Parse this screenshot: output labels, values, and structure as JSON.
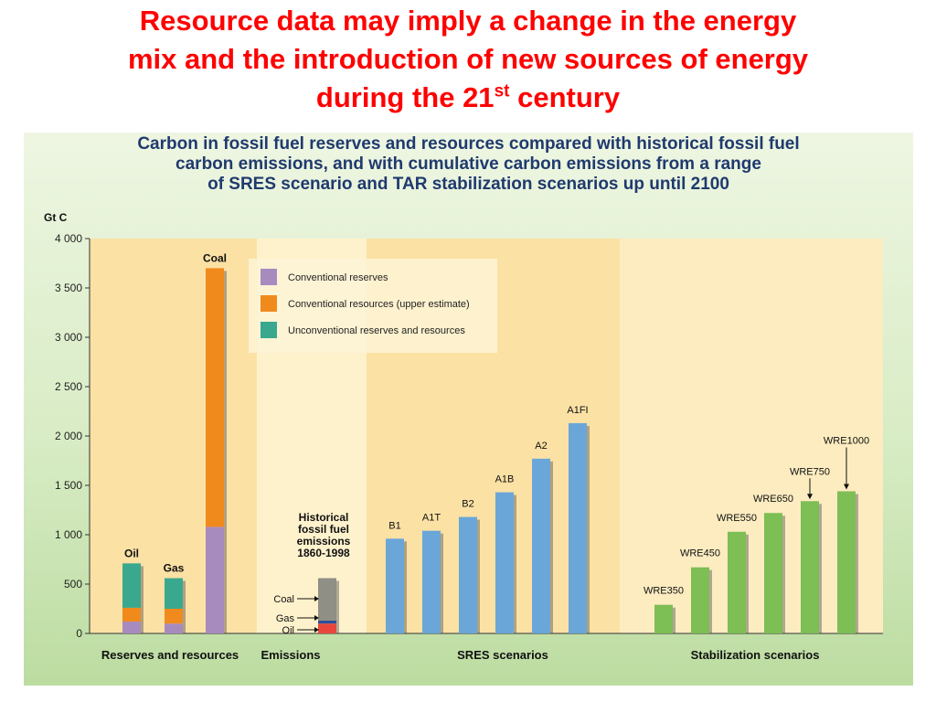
{
  "slide": {
    "title_line1": "Resource data may imply a change in the energy",
    "title_line2": "mix and the introduction of new sources of energy",
    "title_line3_pre": "during the 21",
    "title_line3_sup": "st",
    "title_line3_post": " century"
  },
  "chart_data": {
    "type": "bar",
    "title": "Carbon in fossil fuel reserves and resources compared with historical fossil fuel carbon emissions, and with cumulative carbon emissions from a range of SRES scenario and TAR stabilization scenarios up until 2100",
    "title_lines": [
      "Carbon in fossil fuel reserves and resources compared with historical fossil fuel",
      "carbon emissions, and with cumulative carbon emissions from a range",
      "of SRES scenario and TAR stabilization scenarios up until 2100"
    ],
    "ylabel": "Gt C",
    "ylim": [
      0,
      4000
    ],
    "yticks": [
      0,
      500,
      1000,
      1500,
      2000,
      2500,
      3000,
      3500,
      4000
    ],
    "ytick_labels": [
      "0",
      "500",
      "1 000",
      "1 500",
      "2 000",
      "2 500",
      "3 000",
      "3 500",
      "4 000"
    ],
    "grid": false,
    "legend_position": "top-center",
    "legend": [
      {
        "name": "Conventional reserves",
        "color": "#a78bbf"
      },
      {
        "name": "Conventional resources (upper estimate)",
        "color": "#f08a1c"
      },
      {
        "name": "Unconventional reserves and resources",
        "color": "#3aa88e"
      }
    ],
    "groups": [
      {
        "name": "Reserves and resources",
        "bars": [
          {
            "label": "Oil",
            "stack": [
              {
                "series": "Conventional reserves",
                "value": 120
              },
              {
                "series": "Conventional resources (upper estimate)",
                "value": 140
              },
              {
                "series": "Unconventional reserves and resources",
                "value": 450
              }
            ]
          },
          {
            "label": "Gas",
            "stack": [
              {
                "series": "Conventional reserves",
                "value": 100
              },
              {
                "series": "Conventional resources (upper estimate)",
                "value": 150
              },
              {
                "series": "Unconventional reserves and resources",
                "value": 310
              }
            ]
          },
          {
            "label": "Coal",
            "stack": [
              {
                "series": "Conventional reserves",
                "value": 1080
              },
              {
                "series": "Conventional resources (upper estimate)",
                "value": 2620
              }
            ]
          }
        ]
      },
      {
        "name": "Emissions",
        "label": "Historical fossil fuel emissions 1860-1998",
        "label_lines": [
          "Historical",
          "fossil fuel",
          "emissions",
          "1860-1998"
        ],
        "bars": [
          {
            "label": "",
            "stack": [
              {
                "series": "Oil",
                "value": 100,
                "color": "#e8463c"
              },
              {
                "series": "Gas",
                "value": 30,
                "color": "#2c4f9a"
              },
              {
                "series": "Coal",
                "value": 430,
                "color": "#8f8f86"
              }
            ]
          }
        ],
        "pointers": [
          "Coal",
          "Gas",
          "Oil"
        ]
      },
      {
        "name": "SRES scenarios",
        "color": "#6aa6d8",
        "bars": [
          {
            "label": "B1",
            "value": 960
          },
          {
            "label": "A1T",
            "value": 1040
          },
          {
            "label": "B2",
            "value": 1180
          },
          {
            "label": "A1B",
            "value": 1430
          },
          {
            "label": "A2",
            "value": 1770
          },
          {
            "label": "A1FI",
            "value": 2130
          }
        ]
      },
      {
        "name": "Stabilization scenarios",
        "color": "#7dbe55",
        "bars": [
          {
            "label": "WRE350",
            "value": 290
          },
          {
            "label": "WRE450",
            "value": 670
          },
          {
            "label": "WRE550",
            "value": 1030
          },
          {
            "label": "WRE650",
            "value": 1220
          },
          {
            "label": "WRE750",
            "value": 1340
          },
          {
            "label": "WRE1000",
            "value": 1440
          }
        ]
      }
    ]
  }
}
